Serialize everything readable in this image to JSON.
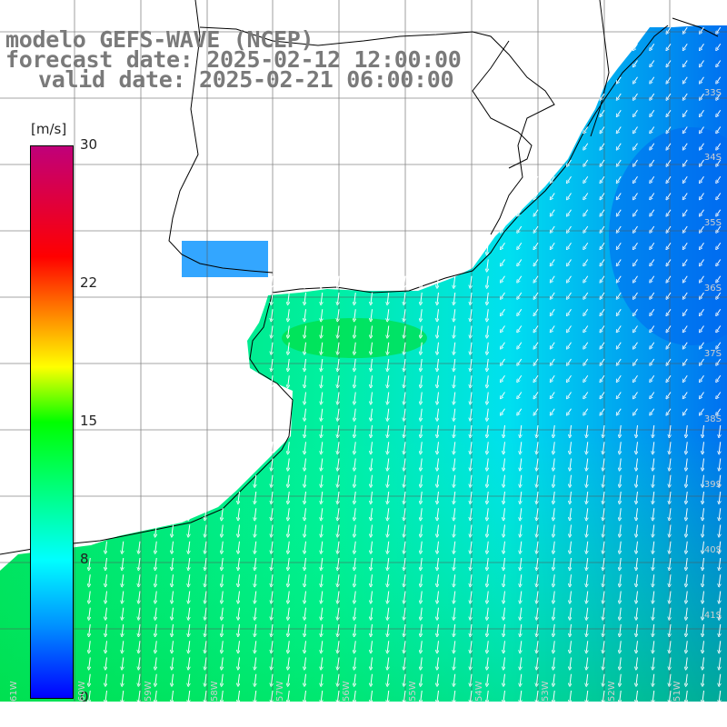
{
  "title": {
    "line1": "modelo GEFS-WAVE (NCEP)",
    "line2": "forecast date: 2025-02-12 12:00:00",
    "line3": "valid date: 2025-02-21 06:00:00"
  },
  "colorbar": {
    "unit": "[m/s]",
    "ticks": [
      "30",
      "22",
      "15",
      "8",
      "0"
    ],
    "colors": [
      "#0000ff",
      "#0090ff",
      "#00ffff",
      "#00ff00",
      "#ffff00",
      "#ff8000",
      "#ff0000",
      "#c0007a"
    ]
  },
  "grid": {
    "lon_labels": [
      "61W",
      "60W",
      "59W",
      "58W",
      "57W",
      "56W",
      "55W",
      "54W",
      "53W",
      "52W",
      "51W"
    ],
    "lat_labels": [
      "33S",
      "34S",
      "35S",
      "36S",
      "37S",
      "38S",
      "39S",
      "40S",
      "41S"
    ]
  },
  "map_info": {
    "field": "wind speed and direction",
    "dominant_flow": "southward / south-southwest",
    "ocean_colors": [
      "#00d0ff",
      "#00ffcc",
      "#00e070",
      "#0070ff"
    ]
  }
}
